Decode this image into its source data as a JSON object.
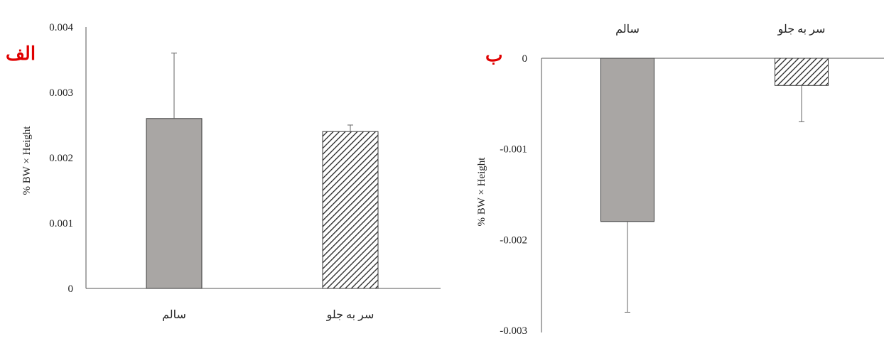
{
  "accent_color": "#e00000",
  "bar_fill": "#a9a6a4",
  "chart_data": [
    {
      "type": "bar",
      "panel_label": "الف",
      "categories": [
        "سالم",
        "سر به جلو"
      ],
      "values": [
        0.0026,
        0.0024
      ],
      "errors": [
        0.001,
        0.0001
      ],
      "patterns": [
        "solid",
        "hatched"
      ],
      "ylabel": "% BW × Height",
      "ylim": [
        0,
        0.004
      ],
      "yticks": [
        "0",
        "0.001",
        "0.002",
        "0.003",
        "0.004"
      ],
      "xlabel": "",
      "title": "",
      "grid": false
    },
    {
      "type": "bar",
      "panel_label": "ب",
      "categories": [
        "سالم",
        "سر به جلو"
      ],
      "values": [
        -0.0018,
        -0.0003
      ],
      "errors": [
        0.001,
        0.0004
      ],
      "patterns": [
        "solid",
        "hatched"
      ],
      "ylabel": "% BW × Height",
      "ylim": [
        -0.003,
        0
      ],
      "yticks": [
        "0",
        "-0.001",
        "-0.002",
        "-0.003"
      ],
      "xlabel": "",
      "title": "",
      "grid": false
    }
  ]
}
